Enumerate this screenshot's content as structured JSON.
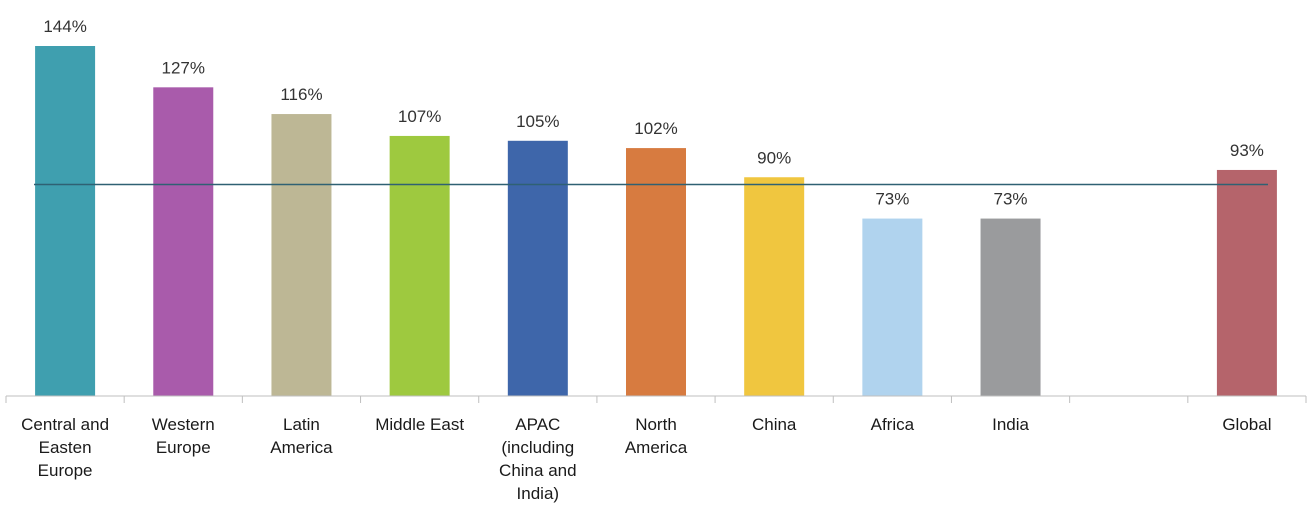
{
  "chart_data": {
    "type": "bar",
    "categories": [
      "Central and Easten Europe",
      "Western Europe",
      "Latin America",
      "Middle East",
      "APAC (including China and India)",
      "North America",
      "China",
      "Africa",
      "India",
      "",
      "Global"
    ],
    "category_lines": [
      [
        "Central and",
        "Easten",
        "Europe"
      ],
      [
        "Western",
        "Europe"
      ],
      [
        "Latin",
        "America"
      ],
      [
        "Middle East"
      ],
      [
        "APAC",
        "(including",
        "China and",
        "India)"
      ],
      [
        "North",
        "America"
      ],
      [
        "China"
      ],
      [
        "Africa"
      ],
      [
        "India"
      ],
      [],
      [
        "Global"
      ]
    ],
    "values": [
      144,
      127,
      116,
      107,
      105,
      102,
      90,
      73,
      73,
      null,
      93
    ],
    "value_labels": [
      "144%",
      "127%",
      "116%",
      "107%",
      "105%",
      "102%",
      "90%",
      "73%",
      "73%",
      "",
      "93%"
    ],
    "colors": [
      "#3f9faf",
      "#a95bab",
      "#bdb795",
      "#9ec93f",
      "#3e66aa",
      "#d77b40",
      "#f0c63f",
      "#b0d3ee",
      "#9a9b9d",
      "",
      "#b5646b"
    ],
    "reference_line": {
      "value": 87,
      "color": "#2f6173"
    },
    "ylim": [
      0,
      144
    ],
    "unit": "%",
    "title": "",
    "xlabel": "",
    "ylabel": "",
    "grid": false,
    "legend": "none"
  }
}
